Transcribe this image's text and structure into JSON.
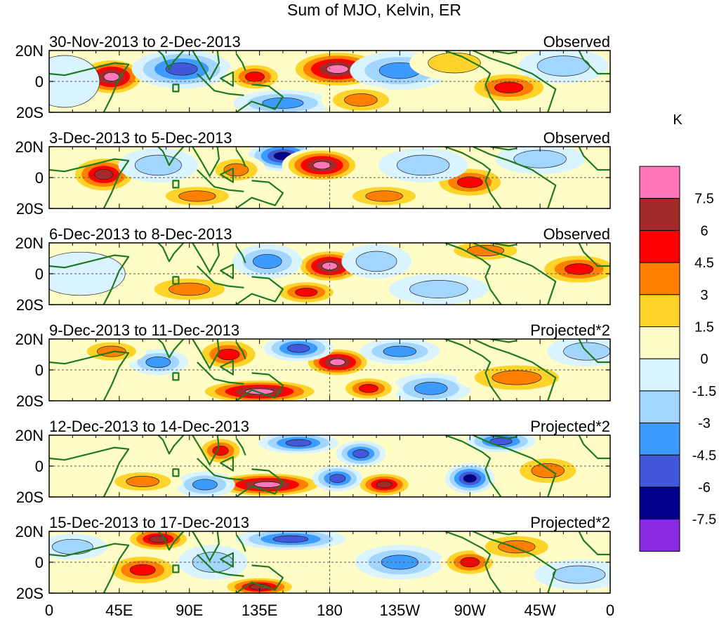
{
  "chart_data": {
    "type": "heatmap",
    "title": "Sum of MJO, Kelvin, ER",
    "units": "K",
    "x_ticks": [
      "0",
      "45E",
      "90E",
      "135E",
      "180",
      "135W",
      "90W",
      "45W",
      "0"
    ],
    "x_tick_lon": [
      0,
      45,
      90,
      135,
      180,
      225,
      270,
      315,
      360
    ],
    "y_ticks": [
      "20N",
      "0",
      "20S"
    ],
    "y_tick_lat": [
      20,
      0,
      -20
    ],
    "lon_range": [
      0,
      360
    ],
    "lat_range": [
      -20,
      20
    ],
    "colorbar": {
      "levels": [
        "7.5",
        "6",
        "4.5",
        "3",
        "1.5",
        "0",
        "-1.5",
        "-3",
        "-4.5",
        "-6",
        "-7.5"
      ],
      "colors": [
        "#ff77bb",
        "#a52a2a",
        "#ff0000",
        "#ff7f00",
        "#ffd42a",
        "#fffcc5",
        "#d9f3ff",
        "#a3d6ff",
        "#3b9bff",
        "#4257d9",
        "#00008b",
        "#8a2be2"
      ]
    },
    "panels": [
      {
        "date": "30-Nov-2013 to 2-Dec-2013",
        "tag": "Observed",
        "blobs": [
          {
            "lon": 40,
            "lat": 3,
            "v": 7.5,
            "rx": 14,
            "ry": 9
          },
          {
            "lon": 85,
            "lat": 8,
            "v": -6.5,
            "rx": 20,
            "ry": 9
          },
          {
            "lon": 132,
            "lat": 3,
            "v": 5.5,
            "rx": 12,
            "ry": 7
          },
          {
            "lon": 185,
            "lat": 8,
            "v": 8,
            "rx": 20,
            "ry": 9
          },
          {
            "lon": 150,
            "lat": -14,
            "v": -4.5,
            "rx": 20,
            "ry": 6
          },
          {
            "lon": 225,
            "lat": 7,
            "v": -4.5,
            "rx": 20,
            "ry": 9
          },
          {
            "lon": 200,
            "lat": -12,
            "v": 3.5,
            "rx": 16,
            "ry": 7
          },
          {
            "lon": 295,
            "lat": -4,
            "v": 5,
            "rx": 18,
            "ry": 8
          },
          {
            "lon": 330,
            "lat": 10,
            "v": -3,
            "rx": 18,
            "ry": 8
          },
          {
            "lon": 260,
            "lat": 12,
            "v": 2.5,
            "rx": 18,
            "ry": 8
          },
          {
            "lon": 10,
            "lat": 0,
            "v": -2.5,
            "rx": 14,
            "ry": 12
          }
        ]
      },
      {
        "date": "3-Dec-2013 to 5-Dec-2013",
        "tag": "Observed",
        "blobs": [
          {
            "lon": 35,
            "lat": 2,
            "v": 6,
            "rx": 14,
            "ry": 9
          },
          {
            "lon": 150,
            "lat": 14,
            "v": -7.5,
            "rx": 14,
            "ry": 7
          },
          {
            "lon": 120,
            "lat": 5,
            "v": 4,
            "rx": 12,
            "ry": 7
          },
          {
            "lon": 175,
            "lat": 8,
            "v": 7.5,
            "rx": 16,
            "ry": 8
          },
          {
            "lon": 270,
            "lat": -3,
            "v": 5.5,
            "rx": 16,
            "ry": 8
          },
          {
            "lon": 240,
            "lat": 8,
            "v": -3.5,
            "rx": 18,
            "ry": 8
          },
          {
            "lon": 215,
            "lat": -12,
            "v": 3,
            "rx": 18,
            "ry": 6
          },
          {
            "lon": 95,
            "lat": -12,
            "v": 3,
            "rx": 18,
            "ry": 6
          },
          {
            "lon": 70,
            "lat": 8,
            "v": -3,
            "rx": 16,
            "ry": 8
          },
          {
            "lon": 315,
            "lat": 12,
            "v": -3,
            "rx": 18,
            "ry": 7
          }
        ]
      },
      {
        "date": "6-Dec-2013 to 8-Dec-2013",
        "tag": "Observed",
        "blobs": [
          {
            "lon": 180,
            "lat": 5,
            "v": 7.5,
            "rx": 14,
            "ry": 8
          },
          {
            "lon": 140,
            "lat": 8,
            "v": -4.5,
            "rx": 14,
            "ry": 8
          },
          {
            "lon": 210,
            "lat": 8,
            "v": -4,
            "rx": 14,
            "ry": 8
          },
          {
            "lon": 165,
            "lat": -12,
            "v": 5,
            "rx": 14,
            "ry": 6
          },
          {
            "lon": 90,
            "lat": -10,
            "v": 3,
            "rx": 20,
            "ry": 7
          },
          {
            "lon": 340,
            "lat": 3,
            "v": 4.5,
            "rx": 18,
            "ry": 8
          },
          {
            "lon": 250,
            "lat": -10,
            "v": -3,
            "rx": 20,
            "ry": 7
          },
          {
            "lon": 280,
            "lat": 15,
            "v": 3,
            "rx": 18,
            "ry": 6
          },
          {
            "lon": 20,
            "lat": 0,
            "v": -2.5,
            "rx": 18,
            "ry": 10
          }
        ]
      },
      {
        "date": "9-Dec-2013 to 11-Dec-2013",
        "tag": "Projected*2",
        "blobs": [
          {
            "lon": 135,
            "lat": -14,
            "v": 8,
            "rx": 26,
            "ry": 6
          },
          {
            "lon": 115,
            "lat": 10,
            "v": 5,
            "rx": 14,
            "ry": 8
          },
          {
            "lon": 185,
            "lat": 5,
            "v": 7.5,
            "rx": 14,
            "ry": 7
          },
          {
            "lon": 160,
            "lat": 14,
            "v": -6.5,
            "rx": 14,
            "ry": 6
          },
          {
            "lon": 225,
            "lat": 12,
            "v": -5,
            "rx": 16,
            "ry": 6
          },
          {
            "lon": 245,
            "lat": -12,
            "v": -5,
            "rx": 16,
            "ry": 7
          },
          {
            "lon": 205,
            "lat": -12,
            "v": 5,
            "rx": 12,
            "ry": 6
          },
          {
            "lon": 70,
            "lat": 5,
            "v": -5,
            "rx": 12,
            "ry": 6
          },
          {
            "lon": 300,
            "lat": -5,
            "v": 4,
            "rx": 24,
            "ry": 8
          },
          {
            "lon": 40,
            "lat": 12,
            "v": 3,
            "rx": 14,
            "ry": 6
          },
          {
            "lon": 345,
            "lat": 12,
            "v": -3,
            "rx": 16,
            "ry": 7
          }
        ]
      },
      {
        "date": "12-Dec-2013 to 14-Dec-2013",
        "tag": "Projected*2",
        "blobs": [
          {
            "lon": 140,
            "lat": -12,
            "v": 8,
            "rx": 24,
            "ry": 6
          },
          {
            "lon": 110,
            "lat": 10,
            "v": 5,
            "rx": 10,
            "ry": 7
          },
          {
            "lon": 160,
            "lat": 15,
            "v": -6.5,
            "rx": 16,
            "ry": 5
          },
          {
            "lon": 200,
            "lat": 8,
            "v": -6,
            "rx": 10,
            "ry": 6
          },
          {
            "lon": 270,
            "lat": -8,
            "v": -7.5,
            "rx": 10,
            "ry": 7
          },
          {
            "lon": 215,
            "lat": -12,
            "v": 6,
            "rx": 12,
            "ry": 6
          },
          {
            "lon": 185,
            "lat": -8,
            "v": -6,
            "rx": 10,
            "ry": 6
          },
          {
            "lon": 100,
            "lat": -12,
            "v": -5,
            "rx": 12,
            "ry": 6
          },
          {
            "lon": 290,
            "lat": 16,
            "v": -6.5,
            "rx": 14,
            "ry": 5
          },
          {
            "lon": 320,
            "lat": -3,
            "v": 4,
            "rx": 16,
            "ry": 8
          },
          {
            "lon": 60,
            "lat": -10,
            "v": 3,
            "rx": 16,
            "ry": 6
          }
        ]
      },
      {
        "date": "15-Dec-2013 to 17-Dec-2013",
        "tag": "Projected*2",
        "blobs": [
          {
            "lon": 70,
            "lat": 15,
            "v": 6,
            "rx": 14,
            "ry": 6
          },
          {
            "lon": 60,
            "lat": -5,
            "v": 5,
            "rx": 16,
            "ry": 8
          },
          {
            "lon": 155,
            "lat": 15,
            "v": -7,
            "rx": 22,
            "ry": 5
          },
          {
            "lon": 135,
            "lat": -16,
            "v": 6,
            "rx": 16,
            "ry": 5
          },
          {
            "lon": 225,
            "lat": 0,
            "v": -4.5,
            "rx": 18,
            "ry": 8
          },
          {
            "lon": 270,
            "lat": 0,
            "v": 5,
            "rx": 12,
            "ry": 7
          },
          {
            "lon": 105,
            "lat": 0,
            "v": -4,
            "rx": 14,
            "ry": 8
          },
          {
            "lon": 300,
            "lat": 10,
            "v": 3,
            "rx": 18,
            "ry": 7
          },
          {
            "lon": 340,
            "lat": -8,
            "v": -3,
            "rx": 18,
            "ry": 7
          },
          {
            "lon": 15,
            "lat": 10,
            "v": -3,
            "rx": 14,
            "ry": 6
          }
        ]
      }
    ]
  }
}
